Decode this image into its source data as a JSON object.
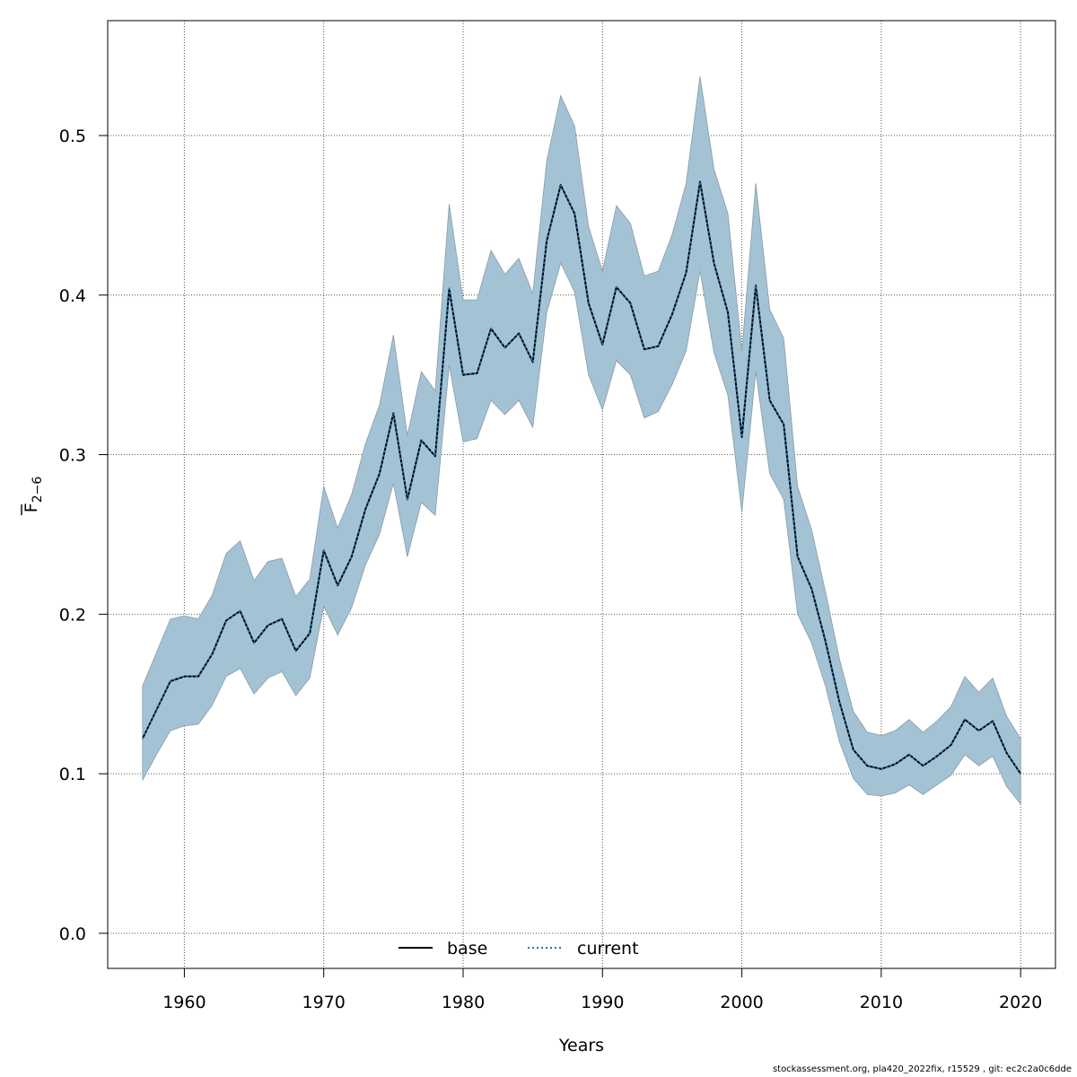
{
  "chart_data": {
    "type": "line",
    "xlabel": "Years",
    "ylabel": "F",
    "ylabel_subscript": "2−6",
    "xlim": [
      1954.5,
      2022.5
    ],
    "ylim": [
      -0.022,
      0.572
    ],
    "x_ticks": [
      1960,
      1970,
      1980,
      1990,
      2000,
      2010,
      2020
    ],
    "y_ticks": [
      0.0,
      0.1,
      0.2,
      0.3,
      0.4,
      0.5
    ],
    "y_tick_labels": [
      "0.0",
      "0.1",
      "0.2",
      "0.3",
      "0.4",
      "0.5"
    ],
    "grid": true,
    "legend_position": "bottom-center",
    "band_color": "#a3c3d5",
    "band_edge_color": "#8a9aa6",
    "current_line_color": "#1f77b4",
    "x": [
      1957,
      1958,
      1959,
      1960,
      1961,
      1962,
      1963,
      1964,
      1965,
      1966,
      1967,
      1968,
      1969,
      1970,
      1971,
      1972,
      1973,
      1974,
      1975,
      1976,
      1977,
      1978,
      1979,
      1980,
      1981,
      1982,
      1983,
      1984,
      1985,
      1986,
      1987,
      1988,
      1989,
      1990,
      1991,
      1992,
      1993,
      1994,
      1995,
      1996,
      1997,
      1998,
      1999,
      2000,
      2001,
      2002,
      2003,
      2004,
      2005,
      2006,
      2007,
      2008,
      2009,
      2010,
      2011,
      2012,
      2013,
      2014,
      2015,
      2016,
      2017,
      2018,
      2019,
      2020
    ],
    "series": [
      {
        "name": "base",
        "style": "solid",
        "color": "#000000",
        "values": [
          0.122,
          0.14,
          0.158,
          0.161,
          0.161,
          0.175,
          0.196,
          0.202,
          0.182,
          0.193,
          0.197,
          0.177,
          0.188,
          0.24,
          0.218,
          0.236,
          0.266,
          0.288,
          0.326,
          0.272,
          0.309,
          0.299,
          0.404,
          0.35,
          0.351,
          0.379,
          0.367,
          0.376,
          0.358,
          0.434,
          0.469,
          0.451,
          0.395,
          0.369,
          0.405,
          0.395,
          0.366,
          0.368,
          0.388,
          0.414,
          0.471,
          0.42,
          0.389,
          0.311,
          0.406,
          0.334,
          0.319,
          0.236,
          0.216,
          0.183,
          0.145,
          0.115,
          0.105,
          0.103,
          0.106,
          0.112,
          0.105,
          0.111,
          0.118,
          0.134,
          0.127,
          0.133,
          0.113,
          0.1
        ]
      },
      {
        "name": "current",
        "style": "dotted",
        "color": "#1f77b4",
        "values": [
          0.122,
          0.14,
          0.158,
          0.161,
          0.161,
          0.175,
          0.196,
          0.202,
          0.182,
          0.193,
          0.197,
          0.177,
          0.188,
          0.24,
          0.218,
          0.236,
          0.266,
          0.288,
          0.326,
          0.272,
          0.309,
          0.299,
          0.404,
          0.35,
          0.351,
          0.379,
          0.367,
          0.376,
          0.358,
          0.434,
          0.469,
          0.451,
          0.395,
          0.369,
          0.405,
          0.395,
          0.366,
          0.368,
          0.388,
          0.414,
          0.471,
          0.42,
          0.389,
          0.311,
          0.406,
          0.334,
          0.319,
          0.236,
          0.216,
          0.183,
          0.145,
          0.115,
          0.105,
          0.103,
          0.106,
          0.112,
          0.105,
          0.111,
          0.118,
          0.134,
          0.127,
          0.133,
          0.113,
          0.1
        ]
      }
    ],
    "band_upper": [
      0.155,
      0.176,
      0.197,
      0.199,
      0.197,
      0.212,
      0.238,
      0.246,
      0.221,
      0.233,
      0.235,
      0.211,
      0.222,
      0.28,
      0.254,
      0.275,
      0.307,
      0.331,
      0.375,
      0.312,
      0.352,
      0.34,
      0.457,
      0.397,
      0.397,
      0.428,
      0.413,
      0.423,
      0.401,
      0.484,
      0.525,
      0.506,
      0.443,
      0.415,
      0.456,
      0.445,
      0.412,
      0.415,
      0.438,
      0.47,
      0.537,
      0.479,
      0.451,
      0.365,
      0.47,
      0.391,
      0.373,
      0.28,
      0.253,
      0.214,
      0.172,
      0.139,
      0.126,
      0.124,
      0.127,
      0.134,
      0.126,
      0.133,
      0.142,
      0.161,
      0.151,
      0.16,
      0.136,
      0.122
    ],
    "band_lower": [
      0.096,
      0.112,
      0.127,
      0.13,
      0.131,
      0.143,
      0.161,
      0.166,
      0.15,
      0.16,
      0.164,
      0.149,
      0.16,
      0.205,
      0.187,
      0.204,
      0.231,
      0.25,
      0.282,
      0.236,
      0.27,
      0.262,
      0.356,
      0.308,
      0.31,
      0.334,
      0.325,
      0.334,
      0.317,
      0.389,
      0.42,
      0.402,
      0.35,
      0.328,
      0.359,
      0.35,
      0.323,
      0.327,
      0.344,
      0.365,
      0.415,
      0.364,
      0.337,
      0.264,
      0.352,
      0.288,
      0.272,
      0.2,
      0.182,
      0.155,
      0.12,
      0.097,
      0.087,
      0.086,
      0.088,
      0.093,
      0.087,
      0.093,
      0.099,
      0.112,
      0.105,
      0.111,
      0.092,
      0.081
    ]
  },
  "footer_text": "stockassessment.org, pla420_2022fix, r15529 , git: ec2c2a0c6dde"
}
